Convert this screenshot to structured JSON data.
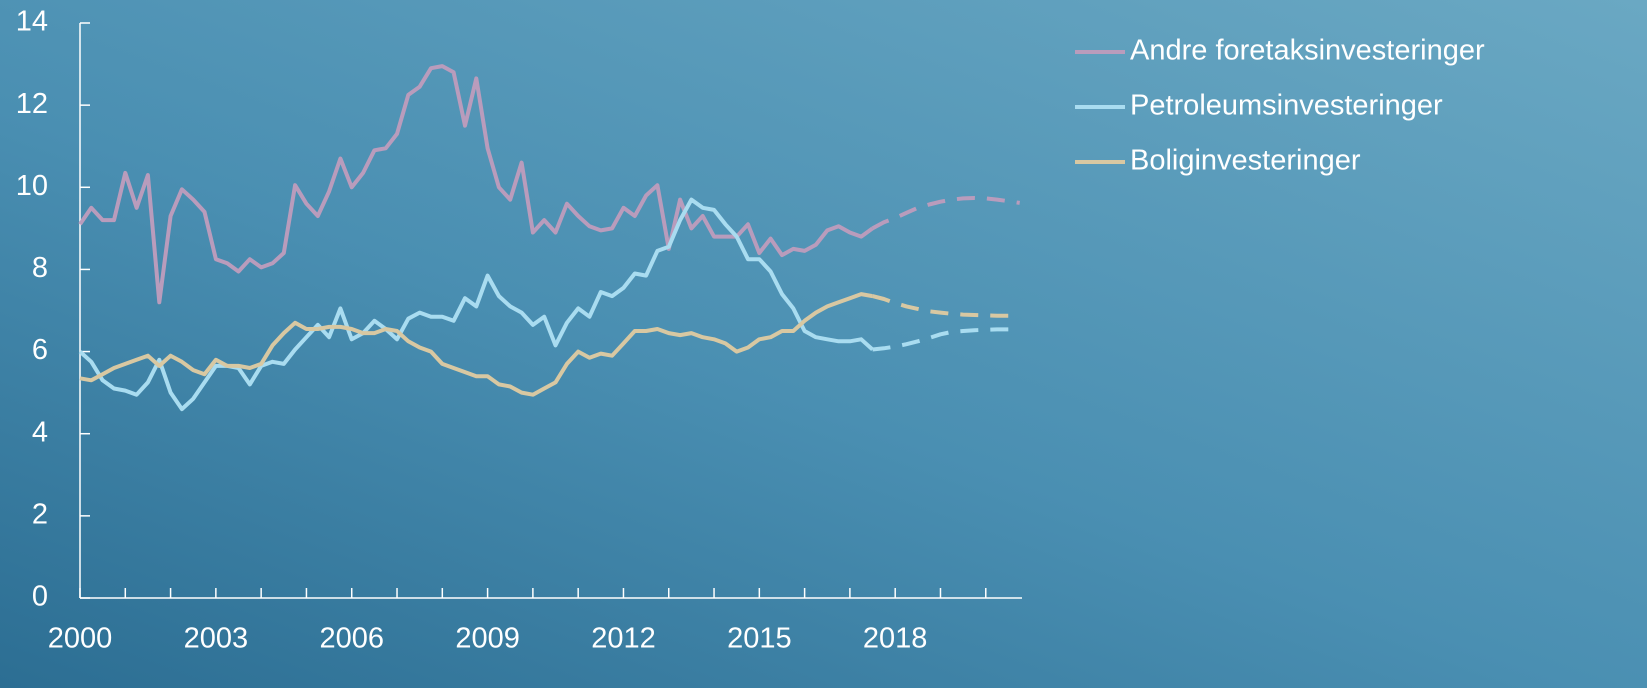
{
  "chart_data": {
    "type": "line",
    "x": [
      2000,
      2000.25,
      2000.5,
      2000.75,
      2001,
      2001.25,
      2001.5,
      2001.75,
      2002,
      2002.25,
      2002.5,
      2002.75,
      2003,
      2003.25,
      2003.5,
      2003.75,
      2004,
      2004.25,
      2004.5,
      2004.75,
      2005,
      2005.25,
      2005.5,
      2005.75,
      2006,
      2006.25,
      2006.5,
      2006.75,
      2007,
      2007.25,
      2007.5,
      2007.75,
      2008,
      2008.25,
      2008.5,
      2008.75,
      2009,
      2009.25,
      2009.5,
      2009.75,
      2010,
      2010.25,
      2010.5,
      2010.75,
      2011,
      2011.25,
      2011.5,
      2011.75,
      2012,
      2012.25,
      2012.5,
      2012.75,
      2013,
      2013.25,
      2013.5,
      2013.75,
      2014,
      2014.25,
      2014.5,
      2014.75,
      2015,
      2015.25,
      2015.5,
      2015.75,
      2016,
      2016.25,
      2016.5,
      2016.75,
      2017,
      2017.25,
      2017.5,
      2017.75,
      2018,
      2018.25,
      2018.5,
      2018.75,
      2019,
      2019.25,
      2019.5,
      2019.75,
      2020,
      2020.25,
      2020.5,
      2020.75
    ],
    "forecast_from": 2017.5,
    "series": [
      {
        "name": "Andre foretaksinvesteringer",
        "color": "#b99cbc",
        "values": [
          9.1,
          9.5,
          9.2,
          9.2,
          10.35,
          9.5,
          10.3,
          7.2,
          9.3,
          9.95,
          9.7,
          9.4,
          8.25,
          8.15,
          7.95,
          8.25,
          8.05,
          8.15,
          8.4,
          10.05,
          9.6,
          9.3,
          9.9,
          10.7,
          10.0,
          10.35,
          10.9,
          10.95,
          11.3,
          12.25,
          12.45,
          12.9,
          12.95,
          12.8,
          11.5,
          12.65,
          10.95,
          10.0,
          9.7,
          10.6,
          8.9,
          9.2,
          8.9,
          9.6,
          9.3,
          9.05,
          8.95,
          9.0,
          9.5,
          9.3,
          9.8,
          10.05,
          8.5,
          9.7,
          9.0,
          9.3,
          8.8,
          8.8,
          8.8,
          9.1,
          8.4,
          8.75,
          8.35,
          8.5,
          8.45,
          8.6,
          8.95,
          9.05,
          8.9,
          8.8,
          9.0,
          9.15,
          9.25,
          9.38,
          9.5,
          9.58,
          9.65,
          9.7,
          9.73,
          9.74,
          9.73,
          9.7,
          9.66,
          9.62
        ]
      },
      {
        "name": "Petroleumsinvesteringer",
        "color": "#a9dcf0",
        "values": [
          6.0,
          5.75,
          5.3,
          5.1,
          5.05,
          4.95,
          5.25,
          5.8,
          5.0,
          4.6,
          4.85,
          5.25,
          5.65,
          5.65,
          5.6,
          5.2,
          5.65,
          5.75,
          5.7,
          6.05,
          6.35,
          6.65,
          6.35,
          7.05,
          6.3,
          6.45,
          6.75,
          6.55,
          6.3,
          6.8,
          6.95,
          6.85,
          6.85,
          6.75,
          7.3,
          7.1,
          7.85,
          7.35,
          7.1,
          6.95,
          6.65,
          6.85,
          6.15,
          6.7,
          7.05,
          6.85,
          7.45,
          7.35,
          7.55,
          7.9,
          7.85,
          8.45,
          8.55,
          9.2,
          9.7,
          9.5,
          9.45,
          9.1,
          8.8,
          8.25,
          8.25,
          7.95,
          7.4,
          7.05,
          6.5,
          6.35,
          6.3,
          6.25,
          6.25,
          6.3,
          6.05,
          6.08,
          6.12,
          6.18,
          6.25,
          6.33,
          6.42,
          6.48,
          6.5,
          6.52,
          6.53,
          6.54,
          6.54,
          6.54
        ]
      },
      {
        "name": "Boliginvesteringer",
        "color": "#d8c8a2",
        "values": [
          5.35,
          5.3,
          5.45,
          5.6,
          5.7,
          5.8,
          5.9,
          5.65,
          5.9,
          5.75,
          5.55,
          5.45,
          5.8,
          5.65,
          5.65,
          5.6,
          5.7,
          6.15,
          6.45,
          6.7,
          6.55,
          6.55,
          6.6,
          6.6,
          6.55,
          6.45,
          6.45,
          6.55,
          6.5,
          6.25,
          6.1,
          6.0,
          5.7,
          5.6,
          5.5,
          5.4,
          5.4,
          5.2,
          5.15,
          5.0,
          4.95,
          5.1,
          5.25,
          5.7,
          6.0,
          5.85,
          5.95,
          5.9,
          6.2,
          6.5,
          6.5,
          6.55,
          6.45,
          6.4,
          6.45,
          6.35,
          6.3,
          6.2,
          6.0,
          6.1,
          6.3,
          6.35,
          6.5,
          6.5,
          6.75,
          6.95,
          7.1,
          7.2,
          7.3,
          7.4,
          7.35,
          7.28,
          7.18,
          7.1,
          7.04,
          6.98,
          6.95,
          6.92,
          6.9,
          6.89,
          6.88,
          6.87,
          6.87,
          6.87
        ]
      }
    ],
    "xlim": [
      2000,
      2020.8
    ],
    "xticks": [
      2000,
      2003,
      2006,
      2009,
      2012,
      2015,
      2018
    ],
    "x_minor_ticks": [
      2001,
      2002,
      2004,
      2005,
      2007,
      2008,
      2010,
      2011,
      2013,
      2014,
      2016,
      2017,
      2019,
      2020
    ],
    "ylim": [
      0,
      14
    ],
    "yticks": [
      0,
      2,
      4,
      6,
      8,
      10,
      12,
      14
    ],
    "grid": false,
    "legend": "right"
  }
}
